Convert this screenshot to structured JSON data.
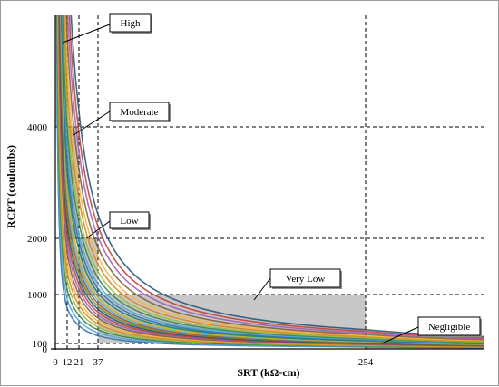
{
  "chart_data": {
    "type": "line",
    "xlabel": "SRT (kΩ-cm)",
    "ylabel": "RCPT (coulombs)",
    "x_ticks": [
      0,
      12,
      21,
      37,
      254
    ],
    "y_ticks": [
      0,
      100,
      1000,
      2000,
      4000
    ],
    "xlim": [
      0,
      400
    ],
    "ylim": [
      0,
      6000
    ],
    "grid": "dashed reference lines at tick values",
    "regions": [
      {
        "label": "High",
        "x_range": [
          0,
          12
        ],
        "y_range": [
          4000,
          6000
        ]
      },
      {
        "label": "Moderate",
        "x_range": [
          12,
          21
        ],
        "y_range": [
          2000,
          4000
        ]
      },
      {
        "label": "Low",
        "x_range": [
          21,
          37
        ],
        "y_range": [
          1000,
          2000
        ]
      },
      {
        "label": "Very Low",
        "x_range": [
          37,
          254
        ],
        "y_range": [
          100,
          1000
        ]
      },
      {
        "label": "Negligible",
        "x_range": [
          254,
          400
        ],
        "y_range": [
          0,
          100
        ]
      }
    ],
    "curve_family": {
      "form": "RCPT = k / SRT",
      "k_values": [
        9000,
        11000,
        13000,
        15000,
        17000,
        19000,
        21000,
        23000,
        25000,
        27000,
        29000,
        31000,
        33000,
        35000,
        38000,
        41000,
        44000,
        48000,
        52000,
        57000,
        62000,
        68000,
        75000,
        82000,
        90000
      ]
    },
    "colors": {
      "region_fill": "#c8c8c8",
      "curves": [
        "#2e6da4",
        "#4aa3df",
        "#3a7d44",
        "#8bbf3c",
        "#e07b1a",
        "#f2b134",
        "#7a5c2e",
        "#9b59b6",
        "#c0392b",
        "#1f4e79",
        "#6b8e23",
        "#a0522d",
        "#5dade2",
        "#d4ac0d",
        "#117a65"
      ]
    }
  }
}
